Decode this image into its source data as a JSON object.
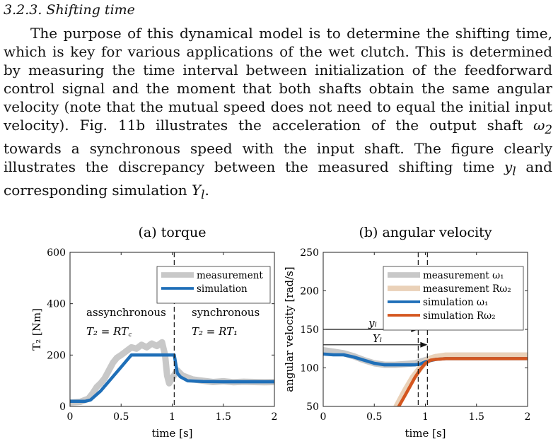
{
  "section": {
    "heading": "3.2.3. Shifting time"
  },
  "paragraph": {
    "part1": "The purpose of this dynamical model is to determine the shifting time, which is key for various applications of the wet clutch. This is determined by measuring the time interval between initialization of the feedforward control signal and the moment that both shafts obtain the same angular velocity (note that the mutual speed does not need to equal the initial input velocity). Fig. 11b illustrates the acceleration of the output shaft ",
    "omega2": "ω",
    "omega2_sub": "2",
    "part2": " towards a synchronous speed with the input shaft. The figure clearly illustrates the discrepancy between the measured shifting time ",
    "y_l": "y",
    "y_l_sub": "l",
    "part3": " and corresponding simulation ",
    "Y_l": "Y",
    "Y_l_sub": "l",
    "part4": "."
  },
  "colors": {
    "measurement": "#c8c8c8",
    "measurement_R": "#ead1b8",
    "simulation": "#1f6fb8",
    "simulation_R": "#d4561f"
  },
  "chart_data": [
    {
      "type": "line",
      "title": "(a) torque",
      "xlabel": "time [s]",
      "ylabel": "T₂ [Nm]",
      "xlim": [
        0,
        2
      ],
      "ylim": [
        0,
        600
      ],
      "xticks": [
        "0",
        "0.5",
        "1",
        "1.5",
        "2"
      ],
      "yticks": [
        "0",
        "200",
        "400",
        "600"
      ],
      "grid": false,
      "legend_position": "top-right",
      "vline_x": 1.02,
      "annotations": {
        "left_label": "assynchronous",
        "left_eq": "T₂ = RT꜀",
        "right_label": "synchronous",
        "right_eq": "T₂ = RT₁"
      },
      "series": [
        {
          "name": "measurement",
          "x": [
            0,
            0.1,
            0.18,
            0.22,
            0.26,
            0.3,
            0.34,
            0.38,
            0.42,
            0.46,
            0.5,
            0.55,
            0.6,
            0.65,
            0.7,
            0.75,
            0.8,
            0.85,
            0.9,
            0.93,
            0.95,
            0.97,
            1.0,
            1.05,
            1.1,
            1.2,
            1.3,
            1.4,
            1.5,
            1.6,
            1.7,
            1.8,
            1.9,
            2.0
          ],
          "y": [
            15,
            18,
            30,
            50,
            75,
            90,
            110,
            140,
            170,
            190,
            200,
            215,
            230,
            225,
            240,
            230,
            245,
            235,
            250,
            200,
            120,
            90,
            110,
            140,
            120,
            105,
            100,
            95,
            98,
            94,
            96,
            95,
            94,
            95
          ]
        },
        {
          "name": "simulation",
          "x": [
            0,
            0.15,
            0.2,
            0.3,
            0.45,
            0.6,
            0.97,
            0.98,
            1.02,
            1.05,
            1.08,
            1.15,
            1.3,
            1.5,
            2.0
          ],
          "y": [
            20,
            20,
            25,
            60,
            130,
            200,
            200,
            200,
            200,
            130,
            115,
            100,
            97,
            96,
            96
          ]
        }
      ]
    },
    {
      "type": "line",
      "title": "(b) angular velocity",
      "xlabel": "time [s]",
      "ylabel": "angular velocity [rad/s]",
      "xlim": [
        0,
        2
      ],
      "ylim": [
        50,
        250
      ],
      "xticks": [
        "0",
        "0.5",
        "1",
        "1.5",
        "2"
      ],
      "yticks": [
        "50",
        "100",
        "150",
        "200",
        "250"
      ],
      "grid": false,
      "legend_position": "top-right",
      "vlines_x": [
        0.93,
        1.02
      ],
      "arrows": [
        {
          "label": "yₗ",
          "x_from": 0,
          "x_to": 0.93,
          "y": 150
        },
        {
          "label": "Yₗ",
          "x_from": 0,
          "x_to": 1.02,
          "y": 130
        }
      ],
      "series": [
        {
          "name": "measurement ω₁",
          "x": [
            0,
            0.1,
            0.2,
            0.3,
            0.4,
            0.5,
            0.6,
            0.7,
            0.8,
            0.9,
            1.0,
            1.1,
            1.3,
            1.5,
            1.7,
            2.0
          ],
          "y": [
            123,
            121,
            119,
            115,
            110,
            106,
            104,
            104,
            105,
            106,
            110,
            114,
            116,
            116,
            116,
            116
          ]
        },
        {
          "name": "measurement Rω₂",
          "x": [
            0.72,
            0.8,
            0.88,
            0.95,
            1.0,
            1.05,
            1.1,
            1.2,
            1.4,
            1.6,
            2.0
          ],
          "y": [
            50,
            70,
            88,
            100,
            108,
            112,
            114,
            116,
            116,
            116,
            116
          ]
        },
        {
          "name": "simulation ω₁",
          "x": [
            0,
            0.1,
            0.2,
            0.3,
            0.4,
            0.5,
            0.6,
            0.7,
            0.8,
            0.9,
            0.95,
            1.0,
            1.1,
            1.2,
            1.5,
            2.0
          ],
          "y": [
            118,
            117,
            117,
            114,
            110,
            106,
            104,
            104,
            104,
            104,
            105,
            108,
            111,
            112,
            112,
            112
          ]
        },
        {
          "name": "simulation Rω₂",
          "x": [
            0.74,
            0.8,
            0.85,
            0.9,
            0.95,
            1.0,
            1.05,
            1.1,
            1.2,
            1.5,
            2.0
          ],
          "y": [
            50,
            64,
            76,
            88,
            98,
            106,
            110,
            111,
            112,
            112,
            112
          ]
        }
      ]
    }
  ]
}
